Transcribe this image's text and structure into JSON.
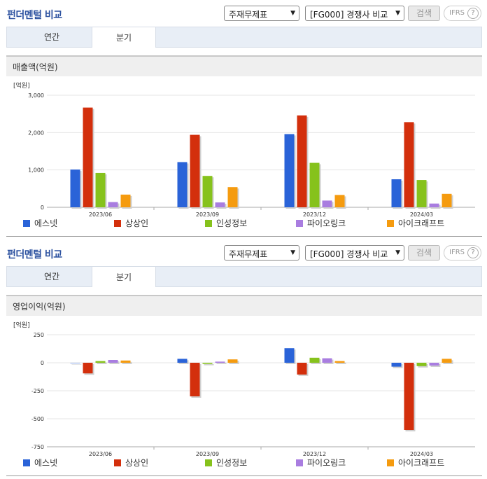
{
  "panels": [
    {
      "title": "펀더멘털 비교",
      "select_statement": "주재무제표",
      "select_compare": "[FG000] 경쟁사 비교",
      "search_label": "검색",
      "ifrs_label": "IFRS",
      "help_label": "?",
      "tabs": [
        "연간",
        "분기"
      ],
      "subheader": "매출액(억원)"
    },
    {
      "title": "펀더멘털 비교",
      "select_statement": "주재무제표",
      "select_compare": "[FG000] 경쟁사 비교",
      "search_label": "검색",
      "ifrs_label": "IFRS",
      "help_label": "?",
      "tabs": [
        "연간",
        "분기"
      ],
      "subheader": "영업이익(억원)"
    }
  ],
  "chart_data": [
    {
      "type": "bar",
      "title": "매출액(억원)",
      "unit_label": "[억원]",
      "categories": [
        "2023/06",
        "2023/09",
        "2023/12",
        "2024/03"
      ],
      "ylim": [
        0,
        3000
      ],
      "yticks": [
        0,
        1000,
        2000,
        3000
      ],
      "ytick_labels": [
        "0",
        "1,000",
        "2,000",
        "3,000"
      ],
      "grid": true,
      "legend_position": "bottom",
      "series": [
        {
          "name": "에스넷",
          "color": "#2a63d8",
          "values": [
            1010,
            1210,
            1960,
            750
          ]
        },
        {
          "name": "상상인",
          "color": "#d32f0c",
          "values": [
            2670,
            1940,
            2460,
            2280
          ]
        },
        {
          "name": "인성정보",
          "color": "#86c21c",
          "values": [
            920,
            840,
            1190,
            730
          ]
        },
        {
          "name": "파이오링크",
          "color": "#a97de0",
          "values": [
            140,
            130,
            180,
            100
          ]
        },
        {
          "name": "아이크래프트",
          "color": "#f59b0f",
          "values": [
            340,
            540,
            330,
            360
          ]
        }
      ]
    },
    {
      "type": "bar",
      "title": "영업이익(억원)",
      "unit_label": "[억원]",
      "categories": [
        "2023/06",
        "2023/09",
        "2023/12",
        "2024/03"
      ],
      "ylim": [
        -750,
        250
      ],
      "yticks": [
        -750,
        -500,
        -250,
        0,
        250
      ],
      "ytick_labels": [
        "-750",
        "-500",
        "-250",
        "0",
        "250"
      ],
      "grid": true,
      "legend_position": "bottom",
      "series": [
        {
          "name": "에스넷",
          "color": "#2a63d8",
          "values": [
            0,
            35,
            130,
            -35
          ]
        },
        {
          "name": "상상인",
          "color": "#d32f0c",
          "values": [
            -95,
            -300,
            -105,
            -600
          ]
        },
        {
          "name": "인성정보",
          "color": "#86c21c",
          "values": [
            15,
            -10,
            45,
            -30
          ]
        },
        {
          "name": "파이오링크",
          "color": "#a97de0",
          "values": [
            25,
            10,
            40,
            -25
          ]
        },
        {
          "name": "아이크래프트",
          "color": "#f59b0f",
          "values": [
            20,
            30,
            15,
            35
          ]
        }
      ]
    }
  ]
}
